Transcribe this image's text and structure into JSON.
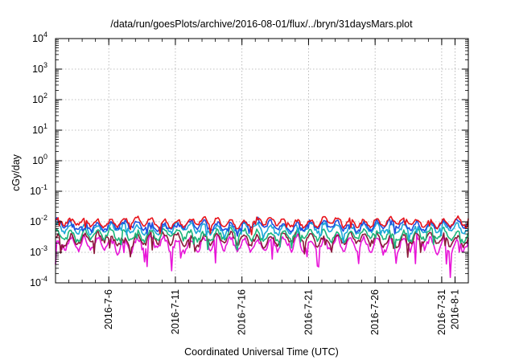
{
  "chart_data": {
    "type": "line",
    "title": "/data/run/goesPlots/archive/2016-08-01/flux/../bryn/31daysMars.plot",
    "xlabel": "Coordinated Universal Time (UTC)",
    "ylabel": "cGy/day",
    "yscale": "log",
    "ylim_exponents": [
      -4,
      4
    ],
    "y_tick_labels": [
      {
        "base": "10",
        "exp": "-4"
      },
      {
        "base": "10",
        "exp": "-3"
      },
      {
        "base": "10",
        "exp": "-2"
      },
      {
        "base": "10",
        "exp": "-1"
      },
      {
        "base": "10",
        "exp": "0"
      },
      {
        "base": "10",
        "exp": "1"
      },
      {
        "base": "10",
        "exp": "2"
      },
      {
        "base": "10",
        "exp": "3"
      },
      {
        "base": "10",
        "exp": "4"
      }
    ],
    "xlim": [
      "2016-07-02",
      "2016-08-02"
    ],
    "x_tick_labels": [
      "2016-7-6",
      "2016-7-11",
      "2016-7-16",
      "2016-7-21",
      "2016-7-26",
      "2016-7-31",
      "2016-8-1"
    ],
    "grid": true,
    "series": [
      {
        "color": "#e8141c",
        "level": 0.0095,
        "amplitude": 0.12,
        "spikes": 0.1
      },
      {
        "color": "#1f4ee0",
        "level": 0.0075,
        "amplitude": 0.13,
        "spikes": 0.1
      },
      {
        "color": "#1aa8d8",
        "level": 0.006,
        "amplitude": 0.14,
        "spikes": 0.12
      },
      {
        "color": "#1bb57a",
        "level": 0.0037,
        "amplitude": 0.16,
        "spikes": 0.15
      },
      {
        "color": "#8b1a3a",
        "level": 0.0026,
        "amplitude": 0.17,
        "spikes": 0.2
      },
      {
        "color": "#e815d8",
        "level": 0.0018,
        "amplitude": 0.22,
        "spikes": 0.3
      }
    ]
  }
}
